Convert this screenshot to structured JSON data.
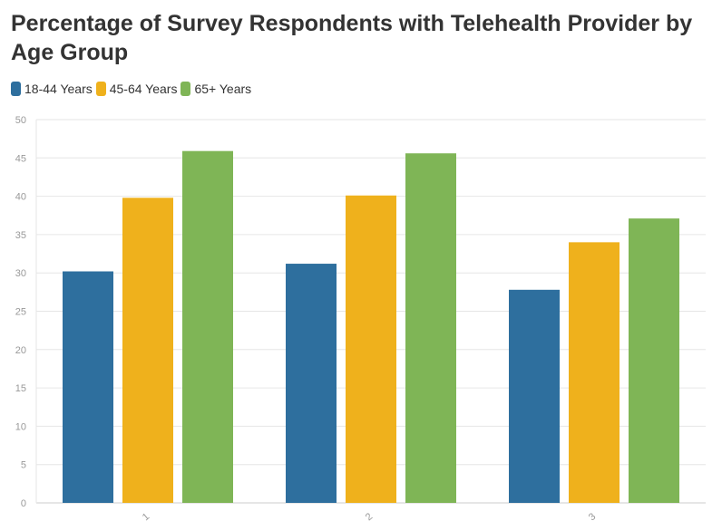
{
  "chart_data": {
    "type": "bar",
    "title": "Percentage of Survey Respondents with Telehealth Provider by Age Group",
    "xlabel": "",
    "ylabel": "",
    "categories": [
      "1",
      "2",
      "3"
    ],
    "series": [
      {
        "name": "18-44 Years",
        "color": "#2e6f9e",
        "values": [
          30.2,
          31.2,
          27.8
        ]
      },
      {
        "name": "45-64 Years",
        "color": "#efb11c",
        "values": [
          39.8,
          40.1,
          34.0
        ]
      },
      {
        "name": "65+ Years",
        "color": "#7fb556",
        "values": [
          45.9,
          45.6,
          37.1
        ]
      }
    ],
    "ylim": [
      0,
      50
    ],
    "yticks": [
      0,
      5,
      10,
      15,
      20,
      25,
      30,
      35,
      40,
      45,
      50
    ],
    "grid": true,
    "legend": "top-left"
  }
}
